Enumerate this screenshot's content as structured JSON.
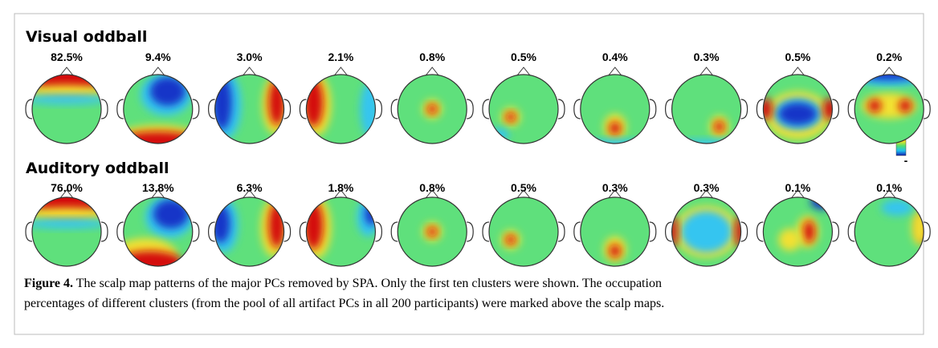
{
  "figure": {
    "rows": [
      {
        "title": "Visual oddball",
        "percentages": [
          "82.5%",
          "9.4%",
          "3.0%",
          "2.1%",
          "0.8%",
          "0.5%",
          "0.4%",
          "0.3%",
          "0.5%",
          "0.2%"
        ]
      },
      {
        "title": "Auditory oddball",
        "percentages": [
          "76.0%",
          "13.8%",
          "6.3%",
          "1.8%",
          "0.8%",
          "0.5%",
          "0.3%",
          "0.3%",
          "0.1%",
          "0.1%"
        ]
      }
    ],
    "colorbar": {
      "top": "+",
      "bottom": "-"
    },
    "caption": {
      "label": "Figure 4.",
      "lines": [
        "The scalp map patterns of the major PCs removed by SPA. Only the first ten clusters were shown. The occupation",
        "percentages of different clusters (from the pool of all artifact PCs in all 200 participants) were marked above the scalp maps."
      ]
    }
  }
}
